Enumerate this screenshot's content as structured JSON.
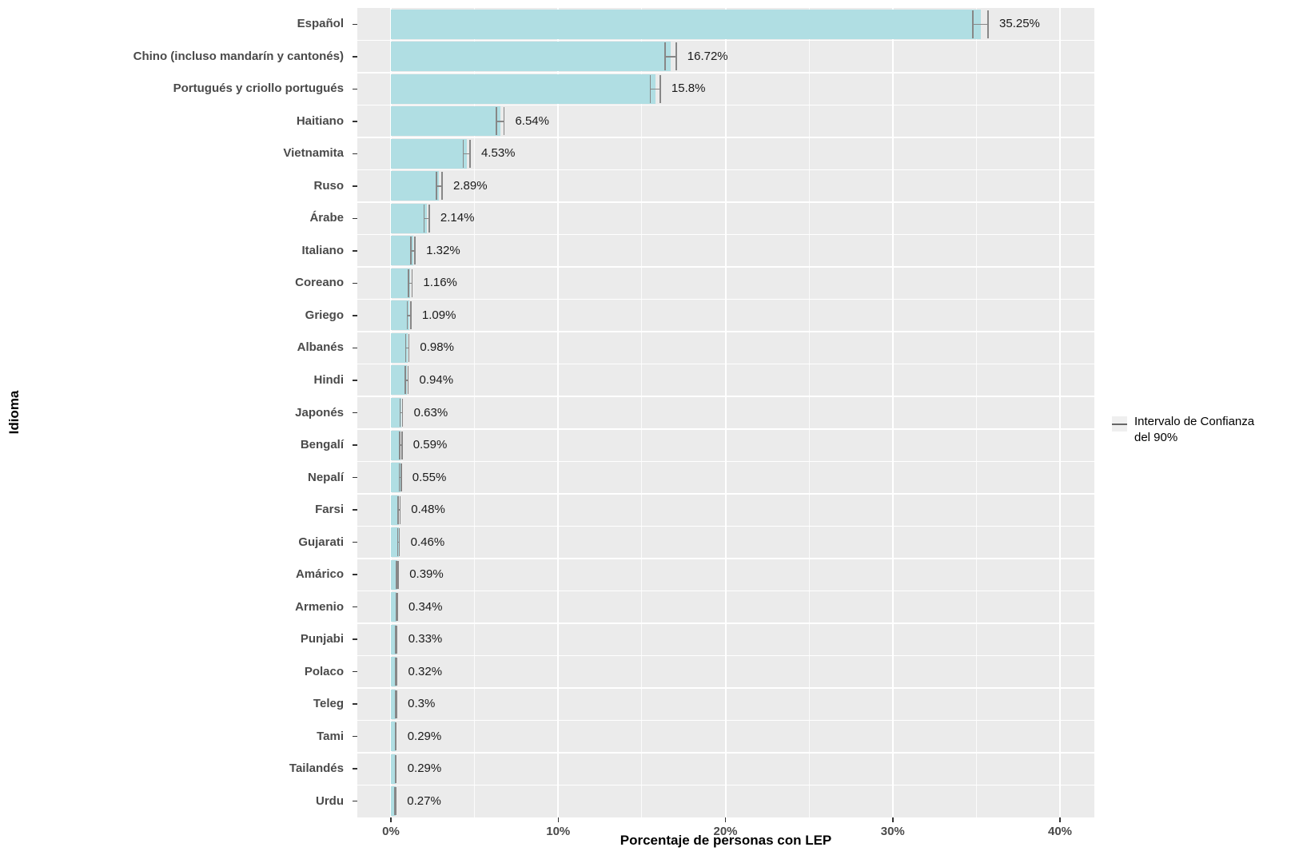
{
  "y_axis": {
    "title": "Idioma"
  },
  "x_axis": {
    "title": "Porcentaje de personas con LEP",
    "tick_values": [
      0,
      10,
      20,
      30,
      40
    ],
    "tick_labels": [
      "0%",
      "10%",
      "20%",
      "30%",
      "40%"
    ],
    "minor_tick_values": [
      5,
      15,
      25,
      35
    ]
  },
  "legend": {
    "line1": "Intervalo de Confianza",
    "line2": "del 90%"
  },
  "colors": {
    "panel_bg": "#EBEBEB",
    "grid": "#FFFFFF",
    "bar": "#B0DEE3",
    "errorbar": "#878787",
    "axis_text": "#4A4A4A",
    "tick_mark": "#333333",
    "value_text": "#1A1A1A"
  },
  "chart_data": {
    "type": "bar",
    "orientation": "horizontal",
    "xlabel": "Porcentaje de personas con LEP",
    "ylabel": "Idioma",
    "xlim": [
      0,
      42
    ],
    "grid": true,
    "legend_position": "right",
    "legend_label": "Intervalo de Confianza del 90%",
    "categories": [
      "Español",
      "Chino (incluso mandarín y cantonés)",
      "Portugués y criollo portugués",
      "Haitiano",
      "Vietnamita",
      "Ruso",
      "Árabe",
      "Italiano",
      "Coreano",
      "Griego",
      "Albanés",
      "Hindi",
      "Japonés",
      "Bengalí",
      "Nepalí",
      "Farsi",
      "Gujarati",
      "Amárico",
      "Armenio",
      "Punjabi",
      "Polaco",
      "Teleg",
      "Tami",
      "Tailandés",
      "Urdu"
    ],
    "values": [
      35.25,
      16.72,
      15.8,
      6.54,
      4.53,
      2.89,
      2.14,
      1.32,
      1.16,
      1.09,
      0.98,
      0.94,
      0.63,
      0.59,
      0.55,
      0.48,
      0.46,
      0.39,
      0.34,
      0.33,
      0.32,
      0.3,
      0.29,
      0.29,
      0.27
    ],
    "value_labels": [
      "35.25%",
      "16.72%",
      "15.8%",
      "6.54%",
      "4.53%",
      "2.89%",
      "2.14%",
      "1.32%",
      "1.16%",
      "1.09%",
      "0.98%",
      "0.94%",
      "0.63%",
      "0.59%",
      "0.55%",
      "0.48%",
      "0.46%",
      "0.39%",
      "0.34%",
      "0.33%",
      "0.32%",
      "0.3%",
      "0.29%",
      "0.29%",
      "0.27%"
    ],
    "ci_low": [
      34.8,
      16.39,
      15.5,
      6.32,
      4.33,
      2.72,
      1.99,
      1.2,
      1.06,
      0.99,
      0.89,
      0.85,
      0.56,
      0.52,
      0.49,
      0.42,
      0.41,
      0.34,
      0.3,
      0.29,
      0.28,
      0.26,
      0.26,
      0.26,
      0.24
    ],
    "ci_high": [
      35.7,
      17.05,
      16.1,
      6.76,
      4.73,
      3.06,
      2.29,
      1.44,
      1.26,
      1.19,
      1.07,
      1.03,
      0.7,
      0.66,
      0.61,
      0.54,
      0.51,
      0.44,
      0.38,
      0.37,
      0.36,
      0.34,
      0.32,
      0.32,
      0.3
    ]
  }
}
